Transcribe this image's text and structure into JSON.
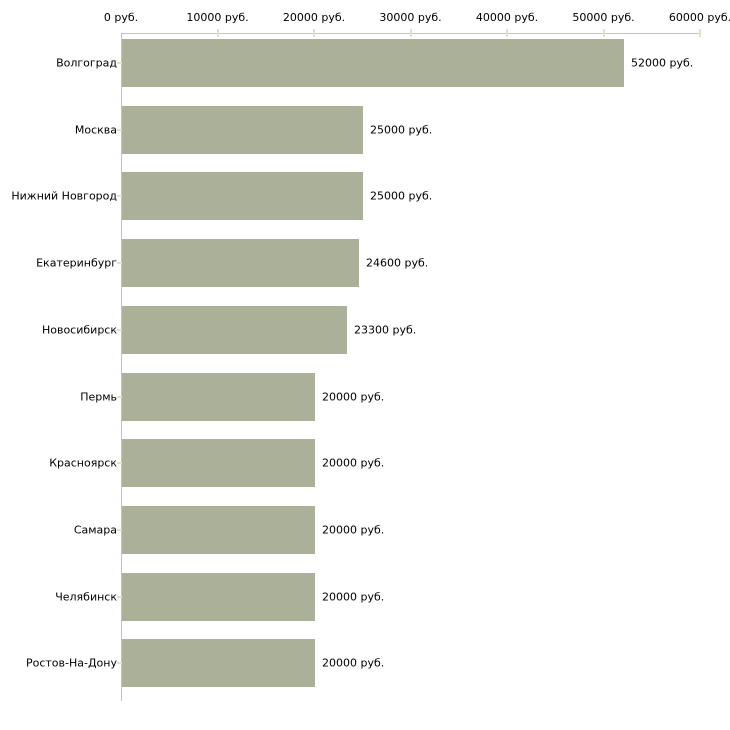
{
  "chart_data": {
    "type": "bar",
    "orientation": "horizontal",
    "title": "",
    "xlabel": "",
    "ylabel": "",
    "categories": [
      "Волгоград",
      "Москва",
      "Нижний Новгород",
      "Екатеринбург",
      "Новосибирск",
      "Пермь",
      "Красноярск",
      "Самара",
      "Челябинск",
      "Ростов-На-Дону"
    ],
    "values": [
      52000,
      25000,
      25000,
      24600,
      23300,
      20000,
      20000,
      20000,
      20000,
      20000
    ],
    "value_labels": [
      "52000 руб.",
      "25000 руб.",
      "25000 руб.",
      "24600 руб.",
      "23300 руб.",
      "20000 руб.",
      "20000 руб.",
      "20000 руб.",
      "20000 руб.",
      "20000 руб."
    ],
    "x_axis": {
      "position": "top",
      "min": 0,
      "max": 60000,
      "tick_values": [
        0,
        10000,
        20000,
        30000,
        40000,
        50000,
        60000
      ],
      "tick_labels": [
        "0 руб.",
        "10000 руб.",
        "20000 руб.",
        "30000 руб.",
        "40000 руб.",
        "50000 руб.",
        "60000 руб."
      ]
    },
    "grid": false,
    "legend": false,
    "colors": {
      "bar": "#abb199",
      "axis_line": "#c2c2c2",
      "tick_mark": "#dfe3c2",
      "text": "#000000",
      "background": "#ffffff"
    }
  }
}
